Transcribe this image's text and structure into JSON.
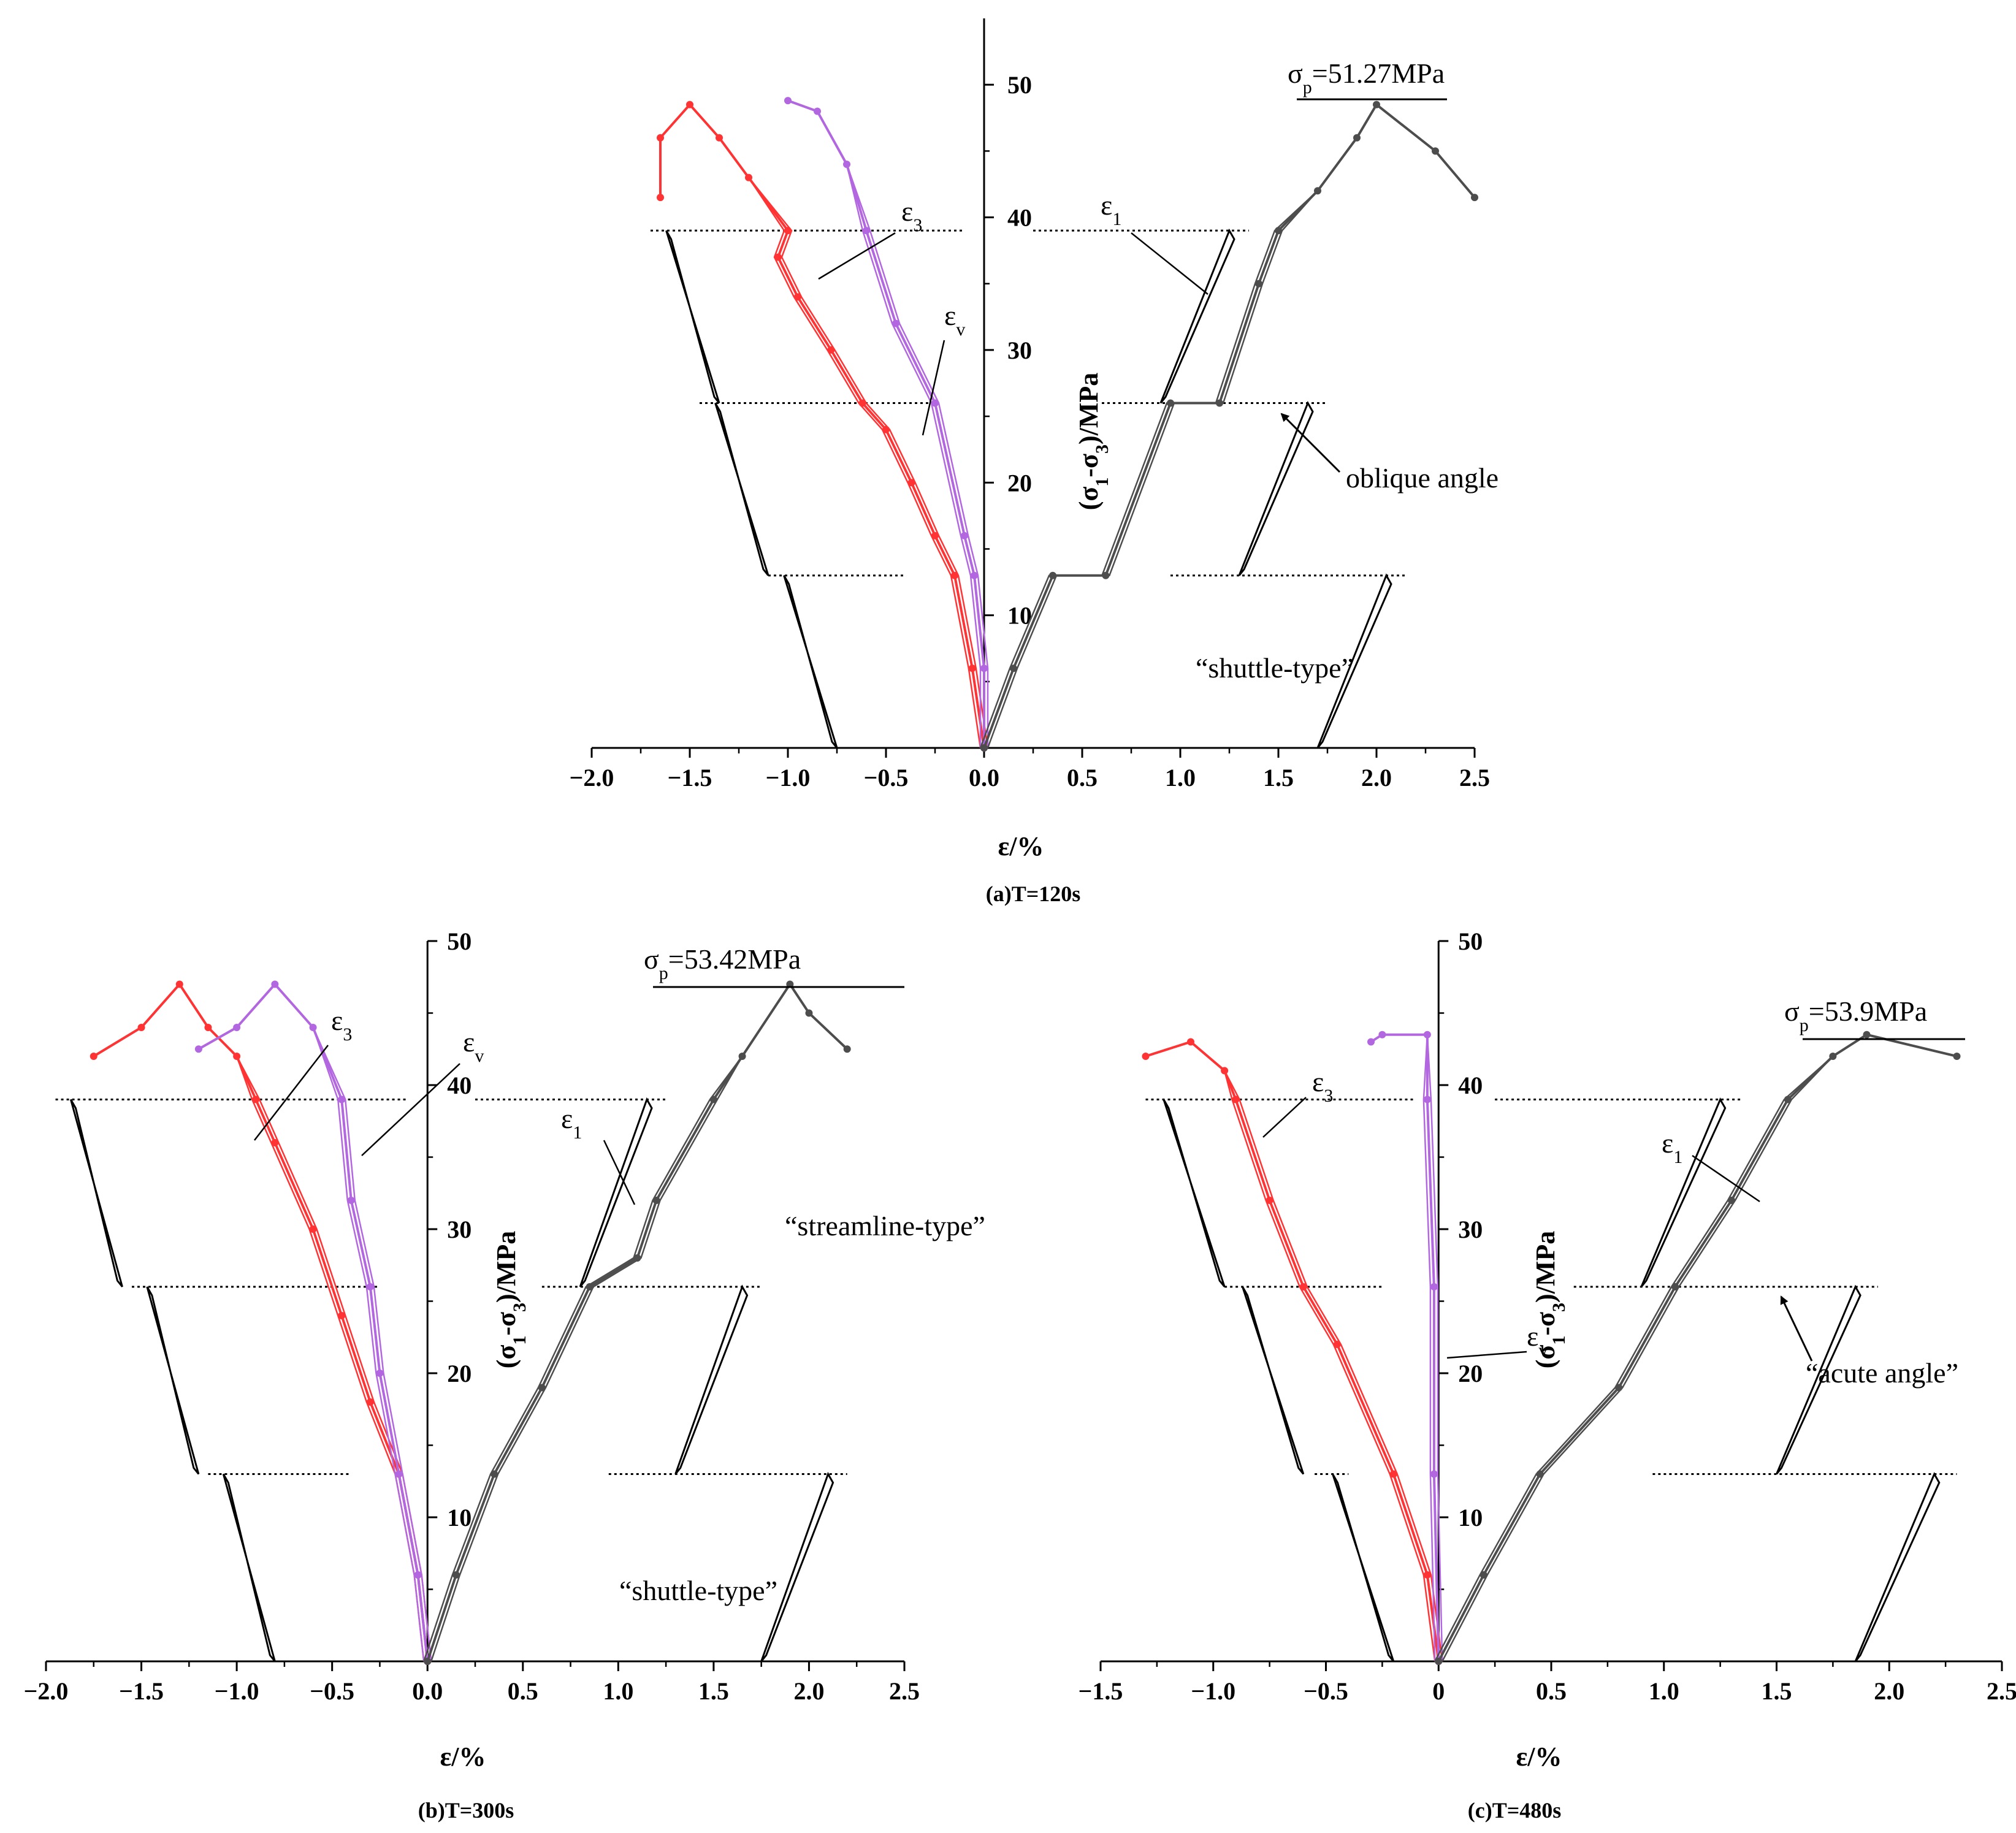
{
  "colors": {
    "eps3": "#ff3333",
    "epsv": "#b266e0",
    "eps1": "#4d4d4d",
    "hyst": "#000000"
  },
  "chart_data": [
    {
      "id": "a",
      "type": "line",
      "caption": "(a)T=120s",
      "xlabel": "ε/%",
      "ylabel_parts": [
        "(σ",
        "1",
        "-σ",
        "3",
        ")/MPa"
      ],
      "xlim": [
        -2.0,
        2.5
      ],
      "ylim": [
        0,
        55
      ],
      "x_ticks": [
        -2.0,
        -1.5,
        -1.0,
        -0.5,
        0.0,
        0.5,
        1.0,
        1.5,
        2.0,
        2.5
      ],
      "x_tick_labels": [
        "−2.0",
        "−1.5",
        "−1.0",
        "−0.5",
        "0.0",
        "0.5",
        "1.0",
        "1.5",
        "2.0",
        "2.5"
      ],
      "y_ticks": [
        10,
        20,
        30,
        40,
        50
      ],
      "y_tick_labels": [
        "10",
        "20",
        "30",
        "40",
        "50"
      ],
      "cycle_levels": [
        13,
        26,
        39
      ],
      "peak": {
        "symbol": "σ",
        "sub": "p",
        "value_text": "=51.27MPa",
        "x": 2.0,
        "y": 48.5
      },
      "annotations": [
        {
          "text": "oblique angle"
        },
        {
          "text": "“shuttle-type”"
        }
      ],
      "curve_labels": [
        {
          "base": "ε",
          "sub": "3"
        },
        {
          "base": "ε",
          "sub": "v"
        },
        {
          "base": "ε",
          "sub": "1"
        }
      ],
      "series": [
        {
          "name": "ε3",
          "color_key": "eps3",
          "points": [
            [
              0,
              0
            ],
            [
              -0.06,
              6
            ],
            [
              -0.15,
              13
            ],
            [
              -0.25,
              16
            ],
            [
              -0.37,
              20
            ],
            [
              -0.5,
              24
            ],
            [
              -0.62,
              26
            ],
            [
              -0.78,
              30
            ],
            [
              -0.95,
              34
            ],
            [
              -1.05,
              37
            ],
            [
              -1.0,
              39
            ],
            [
              -1.2,
              43
            ],
            [
              -1.35,
              46
            ],
            [
              -1.5,
              48.5
            ],
            [
              -1.65,
              46
            ],
            [
              -1.65,
              41.5
            ]
          ]
        },
        {
          "name": "εv",
          "color_key": "epsv",
          "points": [
            [
              0,
              0
            ],
            [
              0.0,
              6
            ],
            [
              -0.05,
              13
            ],
            [
              -0.1,
              16
            ],
            [
              -0.25,
              26
            ],
            [
              -0.45,
              32
            ],
            [
              -0.6,
              39
            ],
            [
              -0.7,
              44
            ],
            [
              -0.85,
              48
            ],
            [
              -1.0,
              48.8
            ]
          ]
        },
        {
          "name": "ε1",
          "color_key": "eps1",
          "points": [
            [
              0,
              0
            ],
            [
              0.15,
              6
            ],
            [
              0.35,
              13
            ],
            [
              0.62,
              13
            ],
            [
              0.95,
              26
            ],
            [
              1.2,
              26
            ],
            [
              1.4,
              35
            ],
            [
              1.5,
              39
            ],
            [
              1.7,
              42
            ],
            [
              1.9,
              46
            ],
            [
              2.0,
              48.5
            ],
            [
              2.3,
              45
            ],
            [
              2.5,
              41.5
            ]
          ]
        }
      ]
    },
    {
      "id": "b",
      "type": "line",
      "caption": "(b)T=300s",
      "xlabel": "ε/%",
      "ylabel_parts": [
        "(σ",
        "1",
        "-σ",
        "3",
        ")/MPa"
      ],
      "xlim": [
        -2.0,
        2.5
      ],
      "ylim": [
        0,
        50
      ],
      "x_ticks": [
        -2.0,
        -1.5,
        -1.0,
        -0.5,
        0.0,
        0.5,
        1.0,
        1.5,
        2.0,
        2.5
      ],
      "x_tick_labels": [
        "−2.0",
        "−1.5",
        "−1.0",
        "−0.5",
        "0.0",
        "0.5",
        "1.0",
        "1.5",
        "2.0",
        "2.5"
      ],
      "y_ticks": [
        10,
        20,
        30,
        40,
        50
      ],
      "y_tick_labels": [
        "10",
        "20",
        "30",
        "40",
        "50"
      ],
      "cycle_levels": [
        13,
        26,
        39
      ],
      "peak": {
        "symbol": "σ",
        "sub": "p",
        "value_text": "=53.42MPa",
        "x": 1.9,
        "y": 47
      },
      "annotations": [
        {
          "text": "“streamline-type”"
        },
        {
          "text": "“shuttle-type”"
        }
      ],
      "curve_labels": [
        {
          "base": "ε",
          "sub": "3"
        },
        {
          "base": "ε",
          "sub": "v"
        },
        {
          "base": "ε",
          "sub": "1"
        }
      ],
      "series": [
        {
          "name": "ε3",
          "color_key": "eps3",
          "points": [
            [
              0,
              0
            ],
            [
              -0.05,
              6
            ],
            [
              -0.15,
              13
            ],
            [
              -0.3,
              18
            ],
            [
              -0.45,
              24
            ],
            [
              -0.6,
              30
            ],
            [
              -0.8,
              36
            ],
            [
              -0.9,
              39
            ],
            [
              -1.0,
              42
            ],
            [
              -1.15,
              44
            ],
            [
              -1.3,
              47
            ],
            [
              -1.5,
              44
            ],
            [
              -1.75,
              42
            ]
          ]
        },
        {
          "name": "εv",
          "color_key": "epsv",
          "points": [
            [
              0,
              0
            ],
            [
              -0.05,
              6
            ],
            [
              -0.15,
              13
            ],
            [
              -0.25,
              20
            ],
            [
              -0.3,
              26
            ],
            [
              -0.4,
              32
            ],
            [
              -0.45,
              39
            ],
            [
              -0.6,
              44
            ],
            [
              -0.8,
              47
            ],
            [
              -1.0,
              44
            ],
            [
              -1.2,
              42.5
            ]
          ]
        },
        {
          "name": "ε1",
          "color_key": "eps1",
          "points": [
            [
              0,
              0
            ],
            [
              0.15,
              6
            ],
            [
              0.35,
              13
            ],
            [
              0.6,
              19
            ],
            [
              0.85,
              26
            ],
            [
              1.1,
              28
            ],
            [
              1.2,
              32
            ],
            [
              1.5,
              39
            ],
            [
              1.65,
              42
            ],
            [
              1.9,
              47
            ],
            [
              2.0,
              45
            ],
            [
              2.2,
              42.5
            ]
          ]
        }
      ]
    },
    {
      "id": "c",
      "type": "line",
      "caption": "(c)T=480s",
      "xlabel": "ε/%",
      "ylabel_parts": [
        "(σ",
        "1",
        "-σ",
        "3",
        ")/MPa"
      ],
      "xlim": [
        -1.5,
        2.5
      ],
      "ylim": [
        0,
        50
      ],
      "x_ticks": [
        -1.5,
        -1.0,
        -0.5,
        0.0,
        0.5,
        1.0,
        1.5,
        2.0,
        2.5
      ],
      "x_tick_labels": [
        "−1.5",
        "−1.0",
        "−0.5",
        "0",
        "0.5",
        "1.0",
        "1.5",
        "2.0",
        "2.5"
      ],
      "y_ticks": [
        10,
        20,
        30,
        40,
        50
      ],
      "y_tick_labels": [
        "10",
        "20",
        "30",
        "40",
        "50"
      ],
      "cycle_levels": [
        13,
        26,
        39
      ],
      "peak": {
        "symbol": "σ",
        "sub": "p",
        "value_text": "=53.9MPa",
        "x": 1.9,
        "y": 43.5
      },
      "annotations": [
        {
          "text": "“acute angle”"
        }
      ],
      "curve_labels": [
        {
          "base": "ε",
          "sub": "3"
        },
        {
          "base": "ε",
          "sub": "v"
        },
        {
          "base": "ε",
          "sub": "1"
        }
      ],
      "series": [
        {
          "name": "ε3",
          "color_key": "eps3",
          "points": [
            [
              0,
              0
            ],
            [
              -0.05,
              6
            ],
            [
              -0.2,
              13
            ],
            [
              -0.45,
              22
            ],
            [
              -0.6,
              26
            ],
            [
              -0.75,
              32
            ],
            [
              -0.9,
              39
            ],
            [
              -0.95,
              41
            ],
            [
              -1.1,
              43
            ],
            [
              -1.3,
              42
            ]
          ]
        },
        {
          "name": "εv",
          "color_key": "epsv",
          "points": [
            [
              0,
              0
            ],
            [
              -0.02,
              13
            ],
            [
              -0.02,
              26
            ],
            [
              -0.05,
              39
            ],
            [
              -0.05,
              43.5
            ],
            [
              -0.25,
              43.5
            ],
            [
              -0.3,
              43
            ]
          ]
        },
        {
          "name": "ε1",
          "color_key": "eps1",
          "points": [
            [
              0,
              0
            ],
            [
              0.2,
              6
            ],
            [
              0.45,
              13
            ],
            [
              0.8,
              19
            ],
            [
              1.05,
              26
            ],
            [
              1.3,
              32
            ],
            [
              1.55,
              39
            ],
            [
              1.75,
              42
            ],
            [
              1.9,
              43.5
            ],
            [
              2.3,
              42
            ]
          ]
        }
      ]
    }
  ]
}
